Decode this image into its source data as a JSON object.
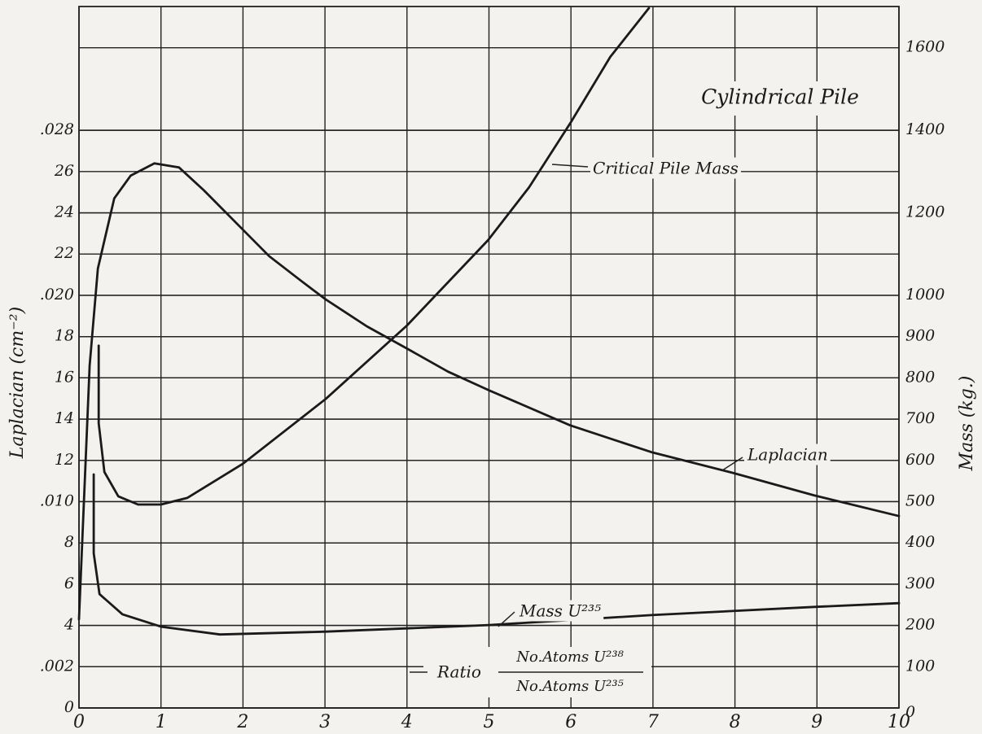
{
  "chart_data": {
    "type": "line",
    "title": "Cylindrical Pile",
    "ylabel": "Laplacian (cm⁻²)",
    "y2label": "Mass (kg.)",
    "xlabel": {
      "prefix": "Ratio",
      "numerator": "No.Atoms U²³⁸",
      "denominator": "No.Atoms U²³⁵"
    },
    "xlim": [
      0,
      10
    ],
    "xticks": [
      0,
      1,
      2,
      3,
      4,
      5,
      6,
      7,
      8,
      9,
      10
    ],
    "ylim": [
      0,
      0.034
    ],
    "yticks": [
      0,
      {
        "value": 0.002,
        "label": ".002"
      },
      {
        "value": 0.004,
        "label": "4"
      },
      {
        "value": 0.006,
        "label": "6"
      },
      {
        "value": 0.008,
        "label": "8"
      },
      {
        "value": 0.01,
        "label": ".010"
      },
      {
        "value": 0.012,
        "label": "12"
      },
      {
        "value": 0.014,
        "label": "14"
      },
      {
        "value": 0.016,
        "label": "16"
      },
      {
        "value": 0.018,
        "label": "18"
      },
      {
        "value": 0.02,
        "label": ".020"
      },
      {
        "value": 0.022,
        "label": "22"
      },
      {
        "value": 0.024,
        "label": "24"
      },
      {
        "value": 0.026,
        "label": "26"
      },
      {
        "value": 0.028,
        "label": ".028"
      }
    ],
    "y2lim": [
      0,
      1700
    ],
    "y2ticks": [
      0,
      100,
      200,
      300,
      400,
      500,
      600,
      700,
      800,
      900,
      1000,
      1200,
      1400,
      1600
    ],
    "grid": true,
    "series": [
      {
        "name": "Laplacian",
        "color": "#1a1a1a",
        "x": [
          0,
          0.13,
          0.23,
          0.43,
          0.63,
          0.92,
          1.22,
          1.52,
          1.92,
          2.32,
          2.71,
          3.01,
          3.51,
          4.01,
          4.5,
          5.0,
          5.99,
          6.98,
          7.97,
          8.97,
          10
        ],
        "values": [
          0.0043,
          0.0166,
          0.0213,
          0.0247,
          0.0258,
          0.0264,
          0.0262,
          0.0251,
          0.0235,
          0.0219,
          0.0207,
          0.0198,
          0.0185,
          0.0174,
          0.0163,
          0.0154,
          0.0137,
          0.0124,
          0.0114,
          0.0103,
          0.0093
        ]
      },
      {
        "name": "Critical Pile Mass",
        "color": "#1a1a1a",
        "axis": "y2",
        "x": [
          0.24,
          0.24,
          0.31,
          0.48,
          0.72,
          1.0,
          1.32,
          2.0,
          3.01,
          4.0,
          4.99,
          5.49,
          6.0,
          6.48,
          6.95
        ],
        "values": [
          878,
          690,
          572,
          513,
          493,
          493,
          509,
          592,
          749,
          927,
          1134,
          1262,
          1420,
          1578,
          1696
        ]
      },
      {
        "name": "Mass U²³⁵",
        "color": "#1a1a1a",
        "axis": "y2",
        "x": [
          0.18,
          0.18,
          0.25,
          0.53,
          1.0,
          1.72,
          3.01,
          5.0,
          6.98,
          8.97,
          10
        ],
        "values": [
          566,
          375,
          276,
          227,
          197,
          178,
          185,
          201,
          225,
          245,
          254
        ]
      }
    ]
  }
}
